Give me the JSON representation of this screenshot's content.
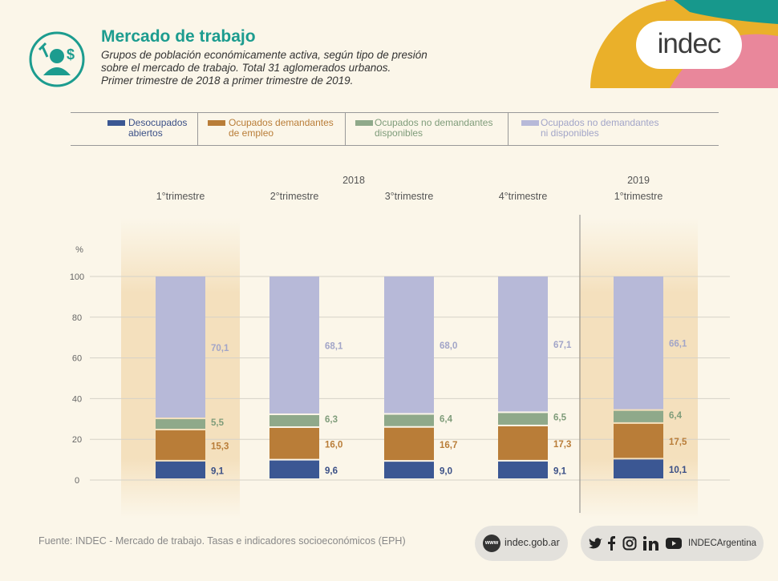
{
  "header": {
    "title": "Mercado de trabajo",
    "subtitle": "Grupos de población económicamente activa, según tipo de presión\nsobre el mercado de trabajo. Total 31 aglomerados urbanos.\nPrimer trimestre de 2018 a primer trimestre de 2019.",
    "icon": "worker-money-icon"
  },
  "brand": {
    "logo_text": "indec"
  },
  "legend": [
    {
      "label": "Desocupados\nabiertos",
      "color": "#3b5793"
    },
    {
      "label": "Ocupados demandantes\nde empleo",
      "color": "#b97d38"
    },
    {
      "label": "Ocupados no demandantes\ndisponibles",
      "color": "#8fa98a"
    },
    {
      "label": "Ocupados no demandantes\nni disponibles",
      "color": "#b7b9d8"
    }
  ],
  "chart_data": {
    "type": "bar",
    "stacked": true,
    "ylabel": "%",
    "ylim": [
      0,
      100
    ],
    "yticks": [
      0,
      20,
      40,
      60,
      80,
      100
    ],
    "year_labels": [
      {
        "label": "2018",
        "spans": [
          0,
          3
        ]
      },
      {
        "label": "2019",
        "spans": [
          4,
          4
        ]
      }
    ],
    "categories": [
      "1°trimestre",
      "2°trimestre",
      "3°trimestre",
      "4°trimestre",
      "1°trimestre"
    ],
    "highlighted": [
      0,
      4
    ],
    "series": [
      {
        "name": "Desocupados abiertos",
        "color": "#3b5793",
        "label_color": "#3a4f86",
        "values": [
          9.1,
          9.6,
          9.0,
          9.1,
          10.1
        ],
        "labels": [
          "9,1",
          "9,6",
          "9,0",
          "9,1",
          "10,1"
        ]
      },
      {
        "name": "Ocupados demandantes de empleo",
        "color": "#b97d38",
        "label_color": "#b97d38",
        "values": [
          15.3,
          16.0,
          16.7,
          17.3,
          17.5
        ],
        "labels": [
          "15,3",
          "16,0",
          "16,7",
          "17,3",
          "17,5"
        ]
      },
      {
        "name": "Ocupados no demandantes disponibles",
        "color": "#8fa98a",
        "label_color": "#7f9c7a",
        "values": [
          5.5,
          6.3,
          6.4,
          6.5,
          6.4
        ],
        "labels": [
          "5,5",
          "6,3",
          "6,4",
          "6,5",
          "6,4"
        ]
      },
      {
        "name": "Ocupados no demandantes ni disponibles",
        "color": "#b7b9d8",
        "label_color": "#a2a5c8",
        "values": [
          70.1,
          68.1,
          68.0,
          67.1,
          66.1
        ],
        "labels": [
          "70,1",
          "68,1",
          "68,0",
          "67,1",
          "66,1"
        ]
      }
    ]
  },
  "footer": {
    "source": "Fuente: INDEC - Mercado de trabajo. Tasas e indicadores socioeconómicos (EPH)",
    "website": "indec.gob.ar",
    "web_icon_text": "www",
    "social_handle": "INDECArgentina",
    "social_icons": [
      "twitter-icon",
      "facebook-icon",
      "instagram-icon",
      "linkedin-icon",
      "youtube-icon"
    ]
  },
  "colors": {
    "teal": "#1c9c8f",
    "corner_yellow": "#eab02a",
    "corner_pink": "#e9879b",
    "corner_teal": "#17988c"
  }
}
